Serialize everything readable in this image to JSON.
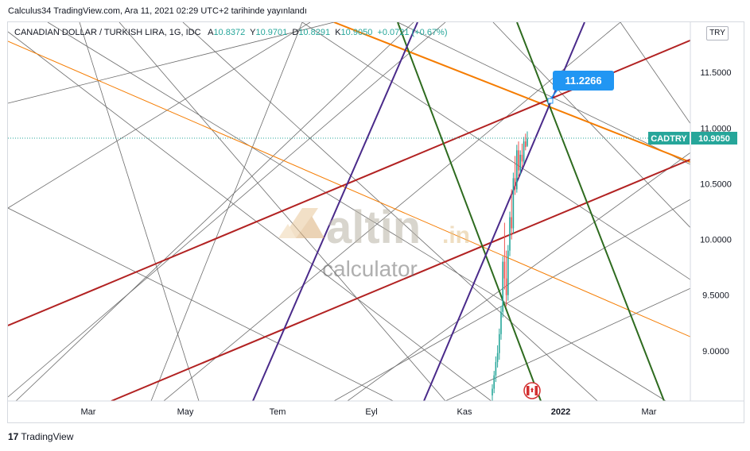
{
  "header": {
    "publisher_line": "Calculus34 TradingView.com, Ara 11, 2021 02:29 UTC+2 tarihinde yayınlandı"
  },
  "legend": {
    "symbol": "CANADIAN DOLLAR / TURKISH LIRA, 1G, IDC",
    "open_label": "A",
    "open": "10.8372",
    "high_label": "Y",
    "high": "10.9701",
    "low_label": "D",
    "low": "10.8291",
    "close_label": "K",
    "close": "10.9050",
    "change": "+0.0721 (+0.67%)"
  },
  "currency_button": "TRY",
  "footer": {
    "logo_mark": "17",
    "logo_text": "TradingView"
  },
  "watermark": {
    "brand": "altin",
    "suffix": ".in",
    "sub": "calculator"
  },
  "colors": {
    "up": "#26a69a",
    "down": "#ef5350",
    "red_fan": "#b22222",
    "orange_fan": "#f57c00",
    "green_fan": "#2e6b1f",
    "purple_fan": "#4a2a8a",
    "grey_fan": "#6b6b6b",
    "callout": "#2196f3",
    "price_tag": "#26a69a"
  },
  "chart_data": {
    "type": "candlestick",
    "symbol": "CADTRY",
    "price_tag": "10.9050",
    "callout_value": "11.2266",
    "y_ticks": [
      "11.5000",
      "11.0000",
      "10.5000",
      "10.0000",
      "9.5000",
      "9.0000"
    ],
    "y_tick_values": [
      11.5,
      11.0,
      10.5,
      10.0,
      9.5,
      9.0
    ],
    "ylim": [
      8.55,
      11.95
    ],
    "x_ticks": [
      "Mar",
      "May",
      "Tem",
      "Eyl",
      "Kas",
      "2022",
      "Mar"
    ],
    "candles_summary": {
      "last_close": 10.905,
      "move": "Sharp rise from about 8.6 to about 10.95 during Kas (November) – Ara (December) 2021"
    },
    "candles": [
      [
        8.6,
        8.7,
        8.55,
        8.66
      ],
      [
        8.66,
        8.82,
        8.62,
        8.78
      ],
      [
        8.78,
        8.95,
        8.72,
        8.9
      ],
      [
        8.9,
        9.05,
        8.85,
        8.98
      ],
      [
        8.98,
        9.2,
        8.92,
        9.15
      ],
      [
        9.15,
        9.4,
        9.1,
        9.35
      ],
      [
        9.35,
        9.85,
        9.3,
        9.8
      ],
      [
        9.8,
        10.15,
        9.55,
        9.65
      ],
      [
        9.65,
        9.9,
        9.4,
        9.5
      ],
      [
        9.5,
        9.95,
        9.45,
        9.9
      ],
      [
        9.9,
        10.25,
        9.85,
        10.2
      ],
      [
        10.2,
        10.45,
        10.0,
        10.1
      ],
      [
        10.1,
        10.6,
        10.05,
        10.55
      ],
      [
        10.55,
        10.75,
        10.4,
        10.45
      ],
      [
        10.45,
        10.85,
        10.42,
        10.8
      ],
      [
        10.8,
        10.88,
        10.55,
        10.62
      ],
      [
        10.62,
        10.8,
        10.58,
        10.76
      ],
      [
        10.76,
        10.86,
        10.65,
        10.7
      ],
      [
        10.7,
        10.92,
        10.68,
        10.88
      ],
      [
        10.88,
        10.95,
        10.8,
        10.83
      ],
      [
        10.84,
        10.97,
        10.83,
        10.905
      ]
    ]
  }
}
